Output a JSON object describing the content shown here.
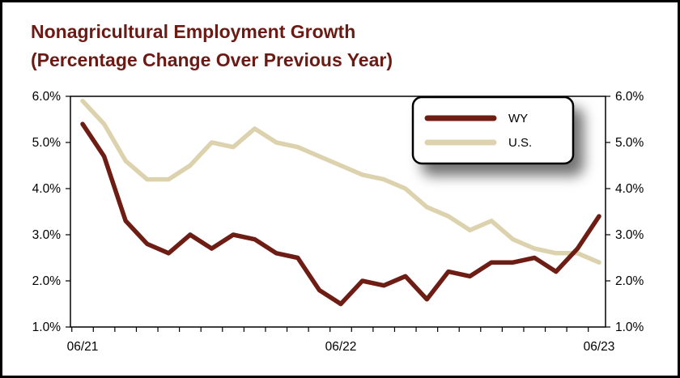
{
  "chart_data": {
    "type": "line",
    "title": "Nonagricultural Employment Growth",
    "subtitle": "(Percentage Change Over Previous Year)",
    "xlabel": "",
    "ylabel": "",
    "x": [
      "2021-06",
      "2021-07",
      "2021-08",
      "2021-09",
      "2021-10",
      "2021-11",
      "2021-12",
      "2022-01",
      "2022-02",
      "2022-03",
      "2022-04",
      "2022-05",
      "2022-06",
      "2022-07",
      "2022-08",
      "2022-09",
      "2022-10",
      "2022-11",
      "2022-12",
      "2023-01",
      "2023-02",
      "2023-03",
      "2023-04",
      "2023-05",
      "2023-06"
    ],
    "x_tick_labels": [
      "06/21",
      "06/22",
      "06/23"
    ],
    "x_ticks_at": [
      "2021-06",
      "2022-06",
      "2023-06"
    ],
    "ylim": [
      1.0,
      6.0
    ],
    "y_ticks": [
      1.0,
      2.0,
      3.0,
      4.0,
      5.0,
      6.0
    ],
    "y_tick_labels": [
      "1.0%",
      "2.0%",
      "3.0%",
      "4.0%",
      "5.0%",
      "6.0%"
    ],
    "grid": false,
    "secondary_y_axis": true,
    "legend_position": "top-right",
    "series": [
      {
        "name": "WY",
        "color": "#6e1d14",
        "values": [
          5.4,
          4.7,
          3.3,
          2.8,
          2.6,
          3.0,
          2.7,
          3.0,
          2.9,
          2.6,
          2.5,
          1.8,
          1.5,
          2.0,
          1.9,
          2.1,
          1.6,
          2.2,
          2.1,
          2.4,
          2.4,
          2.5,
          2.2,
          2.7,
          3.4
        ]
      },
      {
        "name": "U.S.",
        "color": "#ddd2ae",
        "values": [
          5.9,
          5.4,
          4.6,
          4.2,
          4.2,
          4.5,
          5.0,
          4.9,
          5.3,
          5.0,
          4.9,
          4.7,
          4.5,
          4.3,
          4.2,
          4.0,
          3.6,
          3.4,
          3.1,
          3.3,
          2.9,
          2.7,
          2.6,
          2.6,
          2.4
        ]
      }
    ]
  }
}
